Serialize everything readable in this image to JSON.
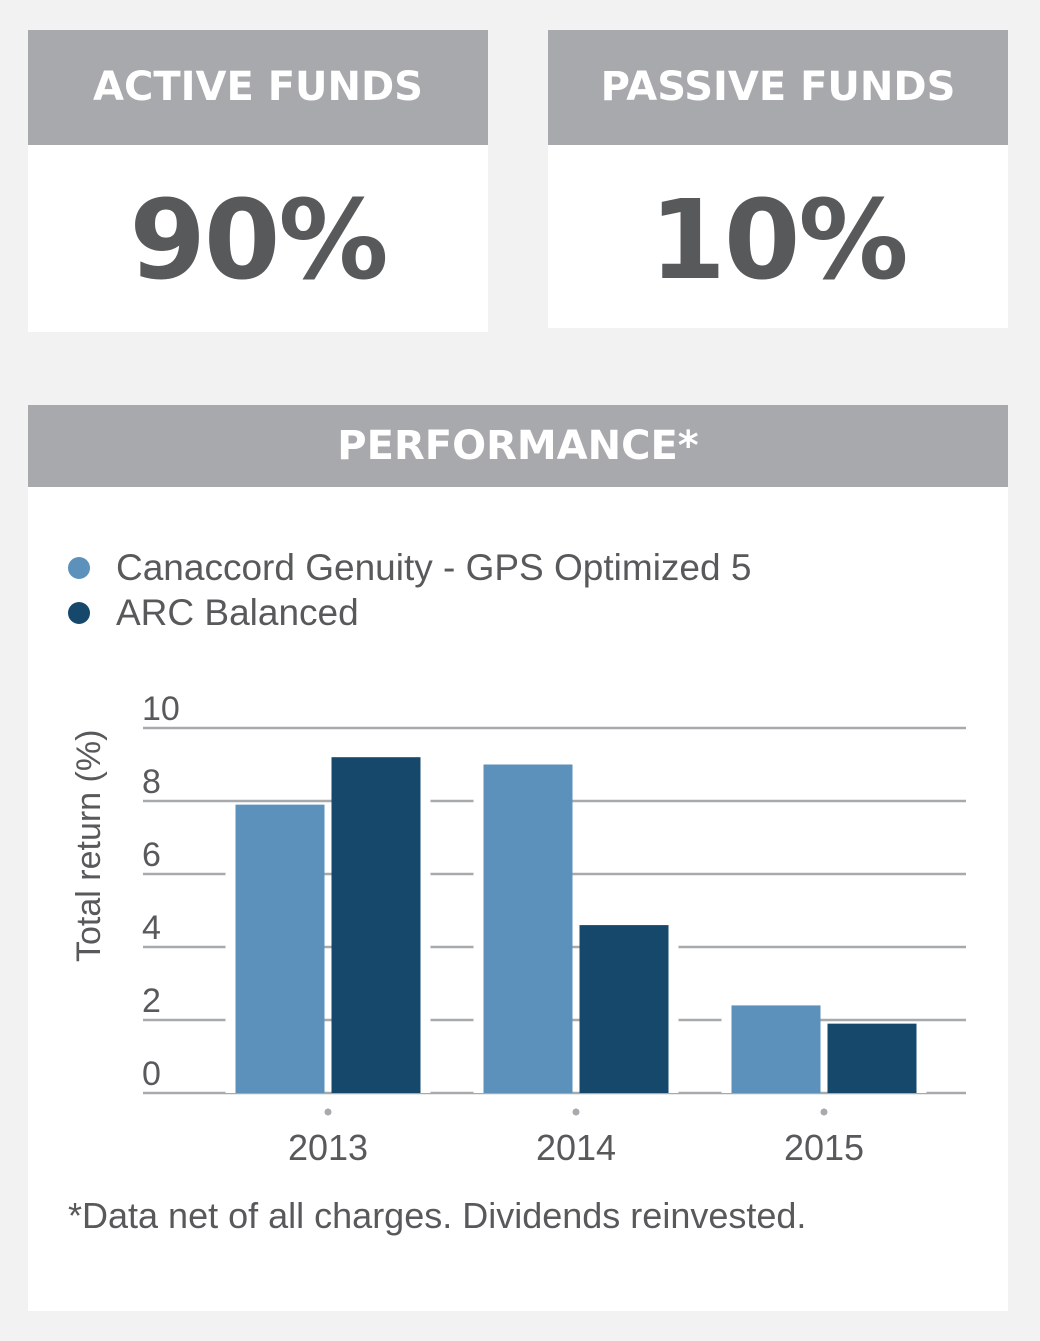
{
  "cards": {
    "active": {
      "label": "ACTIVE FUNDS",
      "value": "90%"
    },
    "passive": {
      "label": "PASSIVE FUNDS",
      "value": "10%"
    }
  },
  "performance": {
    "title": "PERFORMANCE*",
    "footnote": "*Data net of all charges. Dividends reinvested."
  },
  "colors": {
    "header_gray": "#a7a9ac",
    "series_light": "#5b91bb",
    "series_dark": "#16486c",
    "text": "#58595b"
  },
  "chart_data": {
    "type": "bar",
    "categories": [
      "2013",
      "2014",
      "2015"
    ],
    "series": [
      {
        "name": "Canaccord Genuity - GPS Optimized 5",
        "values": [
          7.9,
          9.0,
          2.4
        ],
        "color": "#5b91bb"
      },
      {
        "name": "ARC Balanced",
        "values": [
          9.2,
          4.6,
          1.9
        ],
        "color": "#16486c"
      }
    ],
    "ylabel": "Total return (%)",
    "xlabel": "",
    "ylim": [
      0,
      10
    ],
    "yticks": [
      "0",
      "2",
      "4",
      "6",
      "8",
      "10"
    ],
    "grid": true,
    "legend": "top-left"
  }
}
